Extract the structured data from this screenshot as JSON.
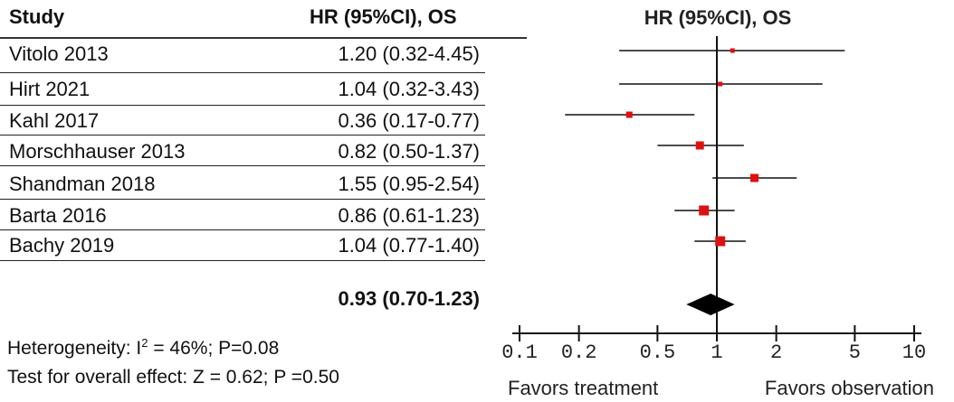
{
  "table": {
    "col_study": "Study",
    "col_hr": "HR (95%CI), OS",
    "rows": [
      {
        "study": "Vitolo 2013",
        "hr": "1.20 (0.32-4.45)"
      },
      {
        "study": "Hirt 2021",
        "hr": "1.04 (0.32-3.43)"
      },
      {
        "study": "Kahl 2017",
        "hr": "0.36 (0.17-0.77)"
      },
      {
        "study": "Morschhauser 2013",
        "hr": "0.82 (0.50-1.37)"
      },
      {
        "study": "Shandman 2018",
        "hr": "1.55 (0.95-2.54)"
      },
      {
        "study": "Barta 2016",
        "hr": "0.86 (0.61-1.23)"
      },
      {
        "study": "Bachy 2019",
        "hr": "1.04 (0.77-1.40)"
      }
    ],
    "pooled_hr": "0.93 (0.70-1.23)"
  },
  "footer": {
    "heterogeneity_prefix": "Heterogeneity: I",
    "heterogeneity_sup": "2",
    "heterogeneity_suffix": " = 46%; P=0.08",
    "overall_effect": "Test for overall effect: Z = 0.62; P =0.50"
  },
  "chart_data": {
    "type": "forest",
    "title": "HR (95%CI), OS",
    "x_scale": "log",
    "xlim": [
      0.1,
      10
    ],
    "x_ticks": [
      0.1,
      0.2,
      0.5,
      1,
      2,
      5,
      10
    ],
    "x_tick_labels": [
      "0.1",
      "0.2",
      "0.5",
      "1",
      "2",
      "5",
      "10"
    ],
    "reference_line": 1,
    "left_label": "Favors treatment",
    "right_label": "Favors observation",
    "studies": [
      {
        "name": "Vitolo 2013",
        "hr": 1.2,
        "lo": 0.32,
        "hi": 4.45,
        "weight": 1
      },
      {
        "name": "Hirt 2021",
        "hr": 1.04,
        "lo": 0.32,
        "hi": 3.43,
        "weight": 1
      },
      {
        "name": "Kahl 2017",
        "hr": 0.36,
        "lo": 0.17,
        "hi": 0.77,
        "weight": 2
      },
      {
        "name": "Morschhauser 2013",
        "hr": 0.82,
        "lo": 0.5,
        "hi": 1.37,
        "weight": 3
      },
      {
        "name": "Shandman 2018",
        "hr": 1.55,
        "lo": 0.95,
        "hi": 2.54,
        "weight": 3
      },
      {
        "name": "Barta 2016",
        "hr": 0.86,
        "lo": 0.61,
        "hi": 1.23,
        "weight": 4
      },
      {
        "name": "Bachy 2019",
        "hr": 1.04,
        "lo": 0.77,
        "hi": 1.4,
        "weight": 4
      }
    ],
    "pooled": {
      "hr": 0.93,
      "lo": 0.7,
      "hi": 1.23
    },
    "colors": {
      "marker": "#dd1111",
      "line": "#111111",
      "diamond": "#000000"
    }
  }
}
